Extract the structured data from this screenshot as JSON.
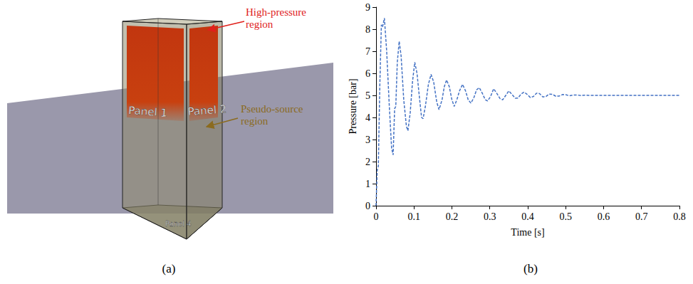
{
  "diagram": {
    "caption": "(a)",
    "regions": [
      "High-pressure region",
      "Pseudo-source region"
    ],
    "panels": [
      "Panel 1",
      "Panel 2",
      "Panel 4"
    ]
  },
  "chart_data": {
    "type": "line",
    "caption": "(b)",
    "x_label": "Time [s]",
    "y_label": "Pressure [bar]",
    "x": [
      0,
      0.003,
      0.006,
      0.01,
      0.014,
      0.017,
      0.022,
      0.028,
      0.035,
      0.041,
      0.045,
      0.049,
      0.052,
      0.056,
      0.061,
      0.066,
      0.073,
      0.08,
      0.084,
      0.09,
      0.096,
      0.102,
      0.108,
      0.115,
      0.12,
      0.124,
      0.13,
      0.138,
      0.145,
      0.152,
      0.16,
      0.166,
      0.174,
      0.18,
      0.186,
      0.193,
      0.2,
      0.206,
      0.213,
      0.22,
      0.228,
      0.236,
      0.243,
      0.25,
      0.258,
      0.265,
      0.272,
      0.28,
      0.288,
      0.294,
      0.302,
      0.31,
      0.318,
      0.327,
      0.334,
      0.342,
      0.35,
      0.358,
      0.367,
      0.374,
      0.382,
      0.39,
      0.398,
      0.407,
      0.415,
      0.423,
      0.431,
      0.44,
      0.448,
      0.456,
      0.465,
      0.474,
      0.483,
      0.492,
      0.5,
      0.51,
      0.52,
      0.53,
      0.54,
      0.55,
      0.56,
      0.6,
      0.7,
      0.8
    ],
    "values": [
      0,
      1.6,
      1.8,
      5.5,
      8.2,
      8.1,
      8.5,
      7.0,
      4.5,
      2.6,
      2.3,
      4.4,
      4.5,
      6.5,
      7.45,
      6.8,
      4.8,
      3.6,
      3.4,
      4.2,
      5.6,
      6.5,
      6.0,
      4.8,
      4.0,
      3.95,
      4.5,
      5.5,
      5.95,
      5.6,
      4.7,
      4.35,
      4.8,
      5.4,
      5.7,
      5.4,
      4.8,
      4.5,
      4.8,
      5.2,
      5.5,
      5.2,
      4.8,
      4.65,
      4.9,
      5.25,
      5.35,
      5.1,
      4.8,
      4.75,
      4.95,
      5.3,
      5.1,
      4.85,
      4.8,
      5.0,
      5.2,
      5.05,
      4.87,
      4.88,
      5.05,
      5.15,
      5.05,
      4.9,
      4.95,
      5.1,
      5.08,
      4.93,
      4.95,
      5.06,
      5.05,
      4.96,
      4.97,
      5.04,
      5.03,
      4.98,
      5.02,
      5.02,
      4.99,
      5.01,
      5.0,
      5.0,
      5.0,
      5.0
    ],
    "color": "#4472c4",
    "line_style": "dashed",
    "xlim": [
      0,
      0.8
    ],
    "xticks": [
      0,
      0.1,
      0.2,
      0.3,
      0.4,
      0.5,
      0.6,
      0.7,
      0.8
    ],
    "ylim": [
      0,
      9
    ],
    "yticks": [
      0,
      1,
      2,
      3,
      4,
      5,
      6,
      7,
      8,
      9
    ],
    "grid": false
  }
}
